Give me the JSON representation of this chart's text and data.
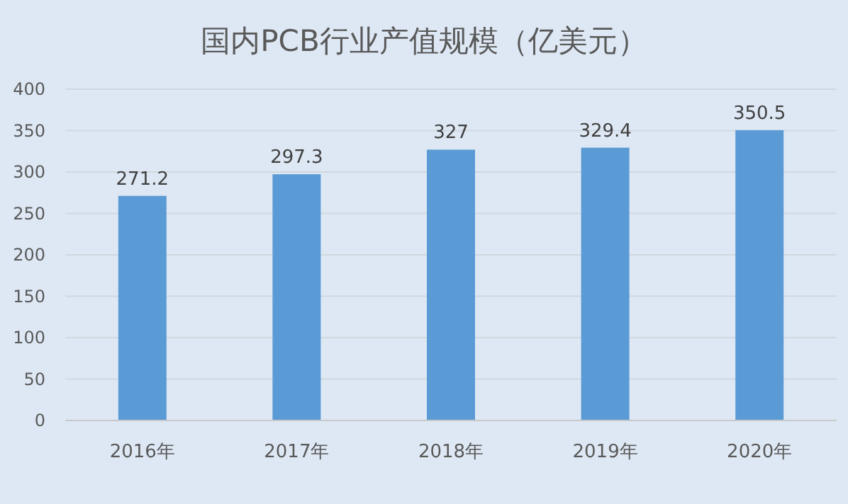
{
  "chart_data": {
    "type": "bar",
    "title": "国内PCB行业产值规模（亿美元）",
    "categories": [
      "2016年",
      "2017年",
      "2018年",
      "2019年",
      "2020年"
    ],
    "values": [
      271.2,
      297.3,
      327,
      329.4,
      350.5
    ],
    "color": "#5b9bd5",
    "ylim": [
      0,
      400
    ],
    "yticks": [
      0,
      50,
      100,
      150,
      200,
      250,
      300,
      350,
      400
    ],
    "grid": "y",
    "data_labels": true
  }
}
